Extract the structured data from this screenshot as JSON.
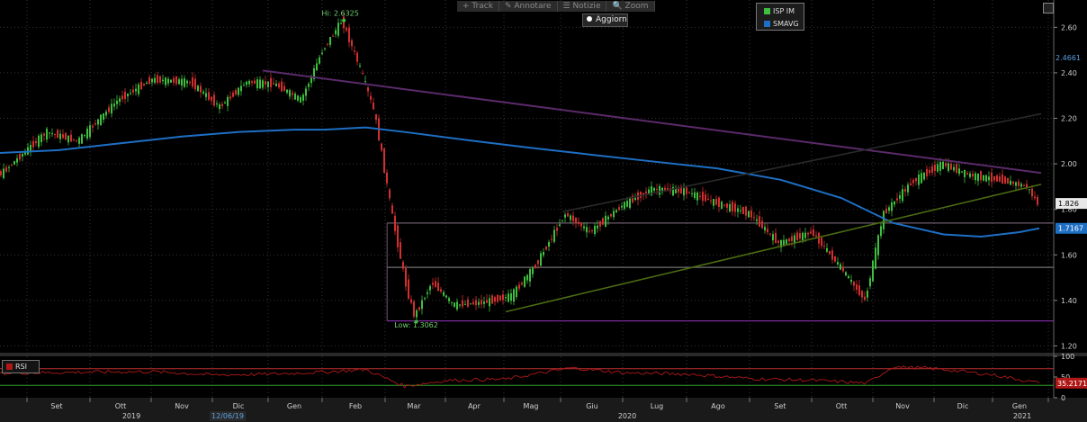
{
  "toolbar": {
    "items": [
      "+ Track",
      "✎ Annotare",
      "☰ Notizie",
      "🔍 Zoom"
    ],
    "update_label": "Aggiorn"
  },
  "legend": [
    {
      "name": "ISP IM",
      "color": "#3fbf3f"
    },
    {
      "name": "SMAVG",
      "color": "#1e6fc4"
    }
  ],
  "rsi_legend": {
    "name": "RSI",
    "color": "#b01818"
  },
  "annotations": {
    "high": "Hi: 2.6325",
    "low": "Low: 1.3062"
  },
  "price_labels": {
    "last": "1.826",
    "smavg": "1.7167",
    "mark": "2.4661"
  },
  "rsi_label": "35.2171",
  "x_axis": {
    "months": [
      "Set",
      "Ott",
      "Nov",
      "Dic",
      "Gen",
      "Feb",
      "Mar",
      "Apr",
      "Mag",
      "Giu",
      "Lug",
      "Ago",
      "Set",
      "Ott",
      "Nov",
      "Dic",
      "Gen"
    ],
    "years": [
      "2019",
      "2020",
      "2021"
    ],
    "date_mark": "12/06/19"
  },
  "chart_data": [
    {
      "type": "line",
      "title": "",
      "y_ticks": [
        1.2,
        1.4,
        1.6,
        1.8,
        2.0,
        2.2,
        2.4,
        2.6
      ],
      "ylim": [
        1.17,
        2.72
      ],
      "series": [
        {
          "name": "ISP IM",
          "color": "#3fbf3f",
          "x": [
            "2019-08-01",
            "2019-08-20",
            "2019-09-10",
            "2019-09-25",
            "2019-10-15",
            "2019-11-01",
            "2019-11-20",
            "2019-12-05",
            "2019-12-20",
            "2020-01-05",
            "2020-01-20",
            "2020-02-01",
            "2020-02-10",
            "2020-02-19",
            "2020-02-25",
            "2020-03-05",
            "2020-03-12",
            "2020-03-16",
            "2020-03-25",
            "2020-04-05",
            "2020-04-20",
            "2020-05-05",
            "2020-05-18",
            "2020-06-03",
            "2020-06-15",
            "2020-07-01",
            "2020-07-15",
            "2020-07-31",
            "2020-08-15",
            "2020-09-01",
            "2020-09-15",
            "2020-10-01",
            "2020-10-15",
            "2020-10-28",
            "2020-11-06",
            "2020-11-20",
            "2020-12-05",
            "2020-12-20",
            "2021-01-05",
            "2021-01-20",
            "2021-01-26"
          ],
          "values": [
            1.9,
            1.96,
            2.14,
            2.1,
            2.28,
            2.37,
            2.36,
            2.25,
            2.36,
            2.35,
            2.28,
            2.5,
            2.63,
            2.4,
            2.22,
            1.75,
            1.45,
            1.33,
            1.48,
            1.38,
            1.39,
            1.42,
            1.55,
            1.78,
            1.7,
            1.82,
            1.89,
            1.88,
            1.83,
            1.78,
            1.65,
            1.7,
            1.55,
            1.4,
            1.78,
            1.92,
            2.0,
            1.95,
            1.93,
            1.9,
            1.826
          ]
        },
        {
          "name": "SMAVG",
          "color": "#1e6fc4",
          "x": [
            "2019-08-01",
            "2019-09-15",
            "2019-10-15",
            "2019-11-15",
            "2019-12-15",
            "2020-01-15",
            "2020-02-01",
            "2020-02-20",
            "2020-03-10",
            "2020-04-15",
            "2020-05-15",
            "2020-06-15",
            "2020-07-15",
            "2020-08-15",
            "2020-09-15",
            "2020-10-15",
            "2020-11-10",
            "2020-12-05",
            "2020-12-25",
            "2021-01-15",
            "2021-01-26"
          ],
          "values": [
            2.04,
            2.06,
            2.09,
            2.12,
            2.14,
            2.15,
            2.15,
            2.16,
            2.14,
            2.1,
            2.07,
            2.04,
            2.01,
            1.98,
            1.93,
            1.85,
            1.74,
            1.69,
            1.68,
            1.7,
            1.7167
          ]
        }
      ],
      "trendlines": [
        {
          "color": "#5b2a6a",
          "x": [
            "2019-12-28",
            "2021-01-27"
          ],
          "values": [
            2.41,
            1.96
          ]
        },
        {
          "color": "#2a2a2a",
          "x": [
            "2020-06-01",
            "2021-01-27"
          ],
          "values": [
            1.79,
            2.22
          ]
        },
        {
          "color": "#4a6a12",
          "x": [
            "2020-05-01",
            "2021-01-27"
          ],
          "values": [
            1.35,
            1.91
          ]
        }
      ],
      "hlines": [
        {
          "value": 1.74,
          "color": "#6a5a6a",
          "from": "2020-03-01"
        },
        {
          "value": 1.545,
          "color": "#707070",
          "from": "2020-03-01"
        },
        {
          "value": 1.31,
          "color": "#7a2a9a",
          "from": "2020-03-01"
        }
      ]
    },
    {
      "type": "line",
      "title": "",
      "y_ticks": [
        0,
        50,
        100
      ],
      "ylim": [
        0,
        100
      ],
      "series": [
        {
          "name": "RSI",
          "color": "#b01818",
          "x": [
            "2019-08-01",
            "2019-09-01",
            "2019-10-01",
            "2019-11-01",
            "2019-12-01",
            "2020-01-01",
            "2020-02-01",
            "2020-02-20",
            "2020-03-10",
            "2020-04-01",
            "2020-05-01",
            "2020-06-05",
            "2020-07-01",
            "2020-08-01",
            "2020-09-01",
            "2020-10-01",
            "2020-10-28",
            "2020-11-10",
            "2020-12-01",
            "2021-01-01",
            "2021-01-26"
          ],
          "values": [
            58,
            60,
            62,
            63,
            55,
            57,
            62,
            68,
            28,
            42,
            45,
            72,
            60,
            57,
            46,
            42,
            35,
            75,
            70,
            55,
            35.2171
          ]
        }
      ],
      "hlines": [
        {
          "value": 70,
          "color": "#c03030"
        },
        {
          "value": 30,
          "color": "#2e9e2e"
        }
      ]
    }
  ]
}
